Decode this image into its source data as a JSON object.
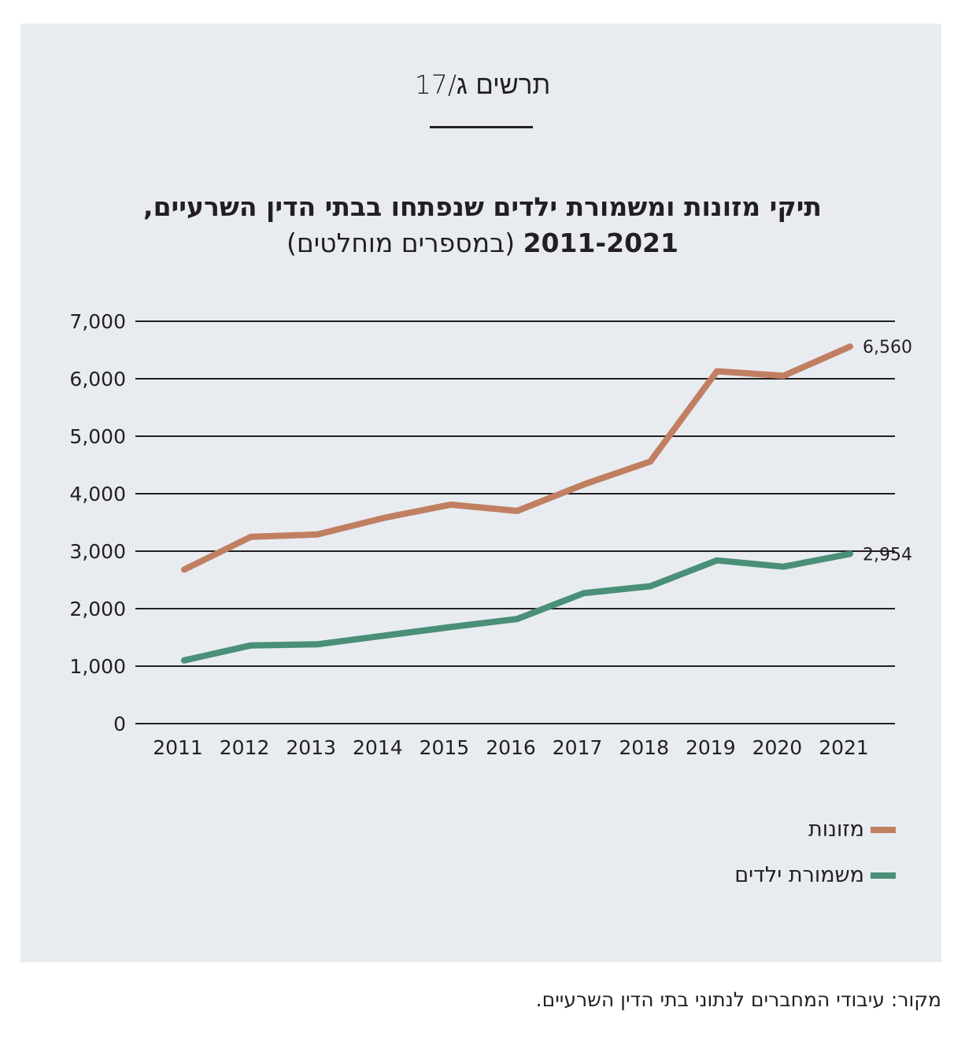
{
  "figure_label": "תרשים ג/17",
  "title": {
    "main": "תיקי מזונות ומשמורת ילדים שנפתחו בבתי הדין השרעיים,",
    "years": "2011-2021",
    "subtitle": "(במספרים מוחלטים)"
  },
  "source": "מקור: עיבודי המחברים לנתוני בתי הדין השרעיים.",
  "colors": {
    "panel_background": "#e8ecf1",
    "alimony": "#c17f62",
    "custody": "#4a8f78",
    "gridline": "#231f20"
  },
  "chart_data": {
    "type": "line",
    "x": [
      "2011",
      "2012",
      "2013",
      "2014",
      "2015",
      "2016",
      "2017",
      "2018",
      "2019",
      "2020",
      "2021"
    ],
    "ylim": [
      0,
      7000
    ],
    "yticks": [
      0,
      1000,
      2000,
      3000,
      4000,
      5000,
      6000,
      7000
    ],
    "ytick_labels": [
      "0",
      "1,000",
      "2,000",
      "3,000",
      "4,000",
      "5,000",
      "6,000",
      "7,000"
    ],
    "grid": true,
    "series": [
      {
        "name": "מזונות",
        "color": "#c17f62",
        "values": [
          2680,
          3250,
          3290,
          3580,
          3810,
          3700,
          4160,
          4560,
          6130,
          6050,
          6560
        ],
        "end_label": "6,560"
      },
      {
        "name": "משמורת ילדים",
        "color": "#4a8f78",
        "values": [
          1100,
          1360,
          1380,
          1530,
          1680,
          1820,
          2270,
          2390,
          2840,
          2730,
          2954
        ],
        "end_label": "2,954"
      }
    ],
    "legend_position": "bottom-right"
  }
}
